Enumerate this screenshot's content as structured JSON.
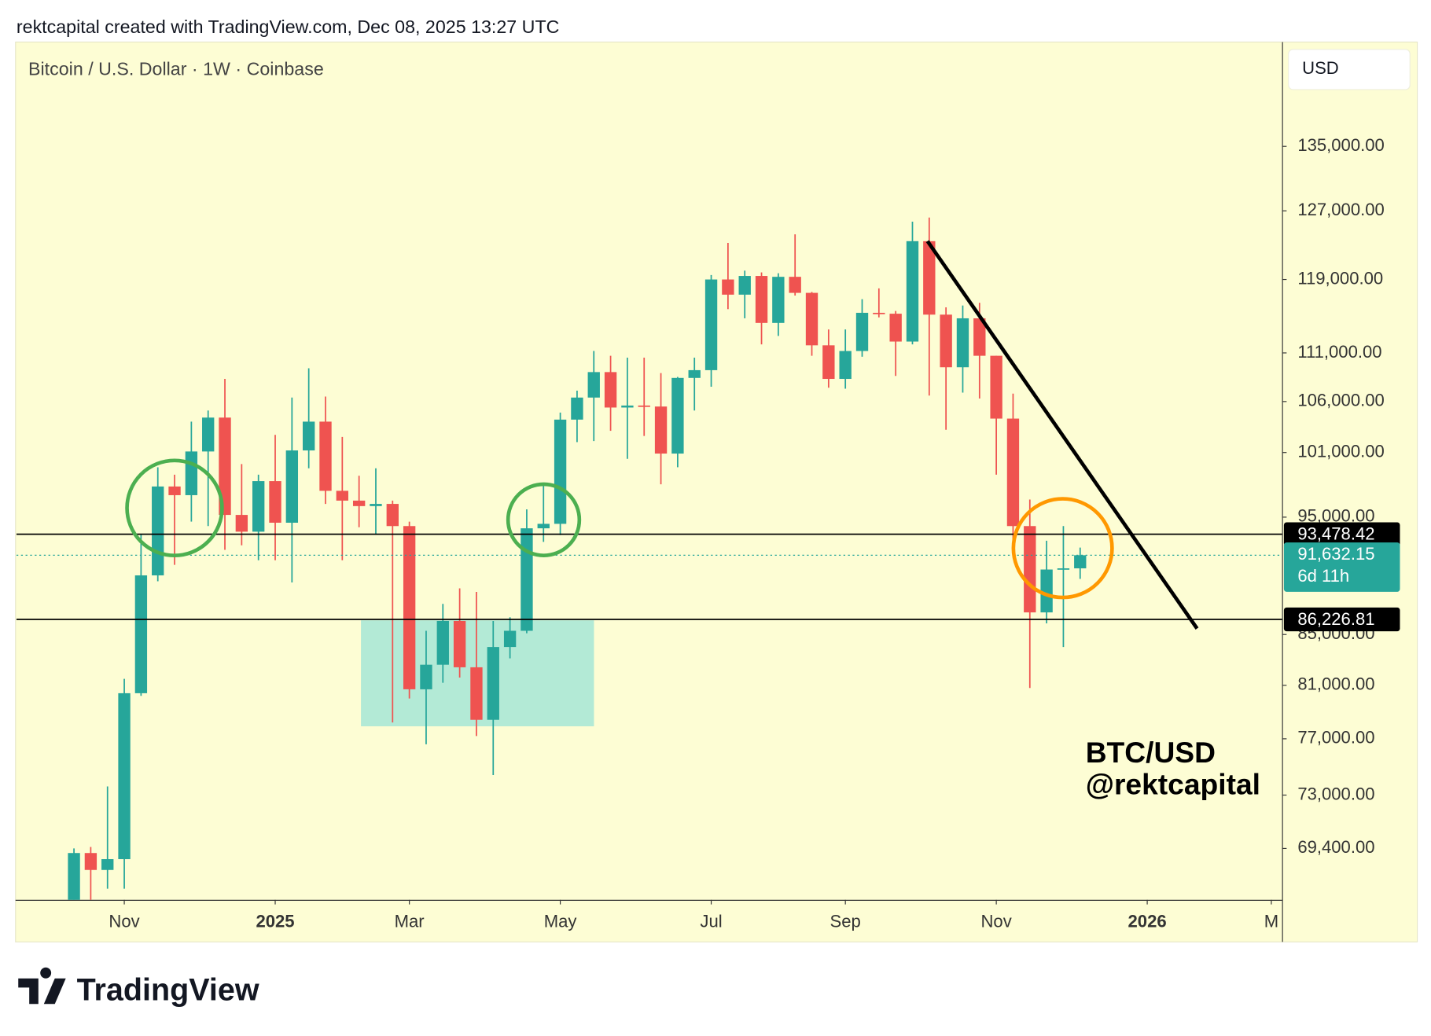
{
  "header": "rektcapital created with TradingView.com, Dec 08, 2025 13:27 UTC",
  "footer": "TradingView",
  "chart_data": {
    "type": "candlestick",
    "title": "Bitcoin / U.S. Dollar · 1W · Coinbase",
    "currency": "USD",
    "annotations": [
      "BTC/USD",
      "@rektcapital"
    ],
    "up_color": "#26a69a",
    "down_color": "#ef5350",
    "log_scale": true,
    "ylim": [
      66100,
      148900
    ],
    "yticks": [
      {
        "value": 69400,
        "label": "69,400.00"
      },
      {
        "value": 73000,
        "label": "73,000.00"
      },
      {
        "value": 77000,
        "label": "77,000.00"
      },
      {
        "value": 81000,
        "label": "81,000.00"
      },
      {
        "value": 85000,
        "label": "85,000.00"
      },
      {
        "value": 95000,
        "label": "95,000.00"
      },
      {
        "value": 101000,
        "label": "101,000.00"
      },
      {
        "value": 106000,
        "label": "106,000.00"
      },
      {
        "value": 111000,
        "label": "111,000.00"
      },
      {
        "value": 119000,
        "label": "119,000.00"
      },
      {
        "value": 127000,
        "label": "127,000.00"
      },
      {
        "value": 135000,
        "label": "135,000.00"
      }
    ],
    "xlim": [
      -3.43,
      72.04
    ],
    "xticks": [
      {
        "value": 3,
        "label": "Nov"
      },
      {
        "value": 12,
        "label": "2025"
      },
      {
        "value": 20,
        "label": "Mar"
      },
      {
        "value": 29,
        "label": "May"
      },
      {
        "value": 38,
        "label": "Jul"
      },
      {
        "value": 46,
        "label": "Sep"
      },
      {
        "value": 55,
        "label": "Nov"
      },
      {
        "value": 64,
        "label": "2026"
      },
      {
        "value": 71.4,
        "label": "M"
      }
    ],
    "open": [
      62900,
      69100,
      68000,
      68700,
      80400,
      89900,
      97800,
      97000,
      101100,
      104400,
      95200,
      93700,
      98300,
      94500,
      101200,
      104000,
      97400,
      96500,
      96000,
      96200,
      94200,
      80700,
      82600,
      86100,
      82400,
      78400,
      84000,
      85300,
      94000,
      94400,
      104200,
      106400,
      109000,
      105400,
      105600,
      105500,
      100900,
      108400,
      109200,
      119000,
      117300,
      119400,
      114200,
      119300,
      117500,
      111800,
      108300,
      111200,
      115300,
      115200,
      112200,
      123400,
      115100,
      109500,
      114700,
      110700,
      104300,
      94200,
      86800,
      90400,
      90500
    ],
    "high": [
      69400,
      69500,
      73600,
      81500,
      93500,
      99600,
      98900,
      104000,
      105100,
      108300,
      99900,
      98900,
      102700,
      106400,
      109400,
      106500,
      102500,
      98800,
      99500,
      96500,
      94600,
      85300,
      87500,
      88800,
      88500,
      86100,
      86400,
      95700,
      97900,
      104900,
      107100,
      111200,
      110700,
      110500,
      110500,
      108900,
      108500,
      110500,
      119500,
      123200,
      120000,
      119800,
      119700,
      124200,
      117600,
      113500,
      113500,
      116800,
      118000,
      115500,
      125700,
      126200,
      115900,
      116100,
      116400,
      110700,
      106800,
      96600,
      92900,
      94200,
      92300
    ],
    "low": [
      62400,
      65100,
      66800,
      66800,
      80200,
      89400,
      90800,
      94600,
      94200,
      92100,
      92500,
      91200,
      91200,
      89300,
      99500,
      96200,
      91200,
      94100,
      93500,
      78200,
      80000,
      76600,
      81200,
      81600,
      77200,
      74400,
      83100,
      85100,
      92800,
      93400,
      102000,
      102100,
      103100,
      100400,
      102600,
      98000,
      99600,
      105100,
      107500,
      115700,
      114700,
      111900,
      112800,
      117200,
      110700,
      107400,
      107300,
      110600,
      114800,
      108600,
      111900,
      106600,
      103200,
      106900,
      106300,
      98900,
      93000,
      80800,
      85900,
      84000,
      89600
    ],
    "close": [
      69100,
      68000,
      68700,
      80400,
      89900,
      97800,
      97000,
      101100,
      104400,
      95200,
      93700,
      98300,
      94500,
      101200,
      104000,
      97400,
      96500,
      96000,
      96200,
      94200,
      80700,
      82600,
      86100,
      82400,
      78400,
      84000,
      85300,
      94000,
      94400,
      104200,
      106400,
      109000,
      105400,
      105600,
      105500,
      100900,
      108400,
      109200,
      119000,
      117300,
      119400,
      114200,
      119300,
      117500,
      111800,
      108300,
      111200,
      115300,
      115200,
      112200,
      123400,
      115100,
      109500,
      114700,
      110700,
      104300,
      94200,
      86800,
      90400,
      90500,
      91632.15
    ],
    "levels": [
      {
        "value": 93478.42,
        "label": "93,478.42"
      },
      {
        "value": 86226.81,
        "label": "86,226.81"
      }
    ],
    "last_price": {
      "value": 91632.15,
      "label": "91,632.15",
      "countdown": "6d 11h"
    }
  }
}
